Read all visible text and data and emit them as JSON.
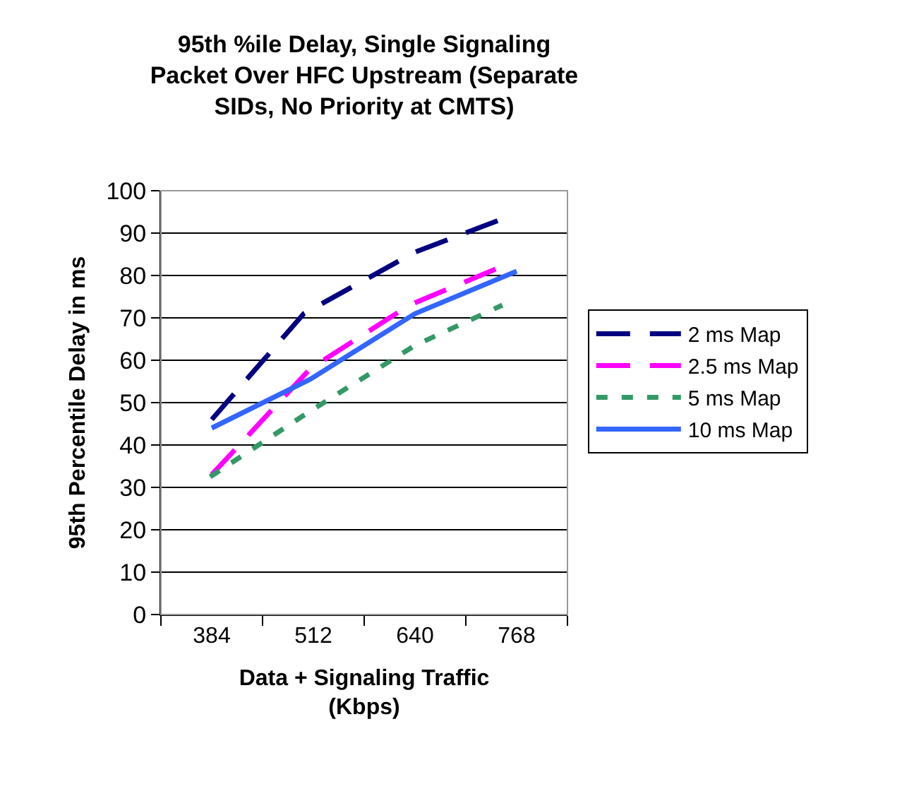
{
  "chart_data": {
    "type": "line",
    "title": "95th %ile Delay, Single Signaling Packet Over HFC Upstream (Separate SIDs, No Priority at CMTS)",
    "xlabel": "Data + Signaling Traffic (Kbps)",
    "ylabel": "95th Percentile Delay in ms",
    "xlim": [
      320,
      832
    ],
    "xticks": [
      384,
      512,
      640,
      768
    ],
    "ylim": [
      0,
      100
    ],
    "yticks": [
      0,
      10,
      20,
      30,
      40,
      50,
      60,
      70,
      80,
      90,
      100
    ],
    "grid": "y",
    "legend": "right",
    "marker": "none",
    "series": [
      {
        "name": "2 ms Map",
        "color": "#000080",
        "line_style": "dashed",
        "x": [
          384,
          500,
          640,
          745
        ],
        "values": [
          46,
          71,
          85.5,
          93
        ]
      },
      {
        "name": "2.5 ms Map",
        "color": "#ff00ff",
        "line_style": "dashed",
        "x": [
          384,
          508,
          633,
          748
        ],
        "values": [
          33,
          58,
          73,
          82
        ]
      },
      {
        "name": "5 ms Map",
        "color": "#339966",
        "line_style": "dotted",
        "x": [
          382,
          508,
          640,
          750
        ],
        "values": [
          32.5,
          48,
          63.5,
          73
        ]
      },
      {
        "name": "10 ms Map",
        "color": "#3366ff",
        "line_style": "solid",
        "x": [
          384,
          508,
          640,
          768
        ],
        "values": [
          44,
          55.5,
          71,
          81
        ]
      }
    ]
  }
}
